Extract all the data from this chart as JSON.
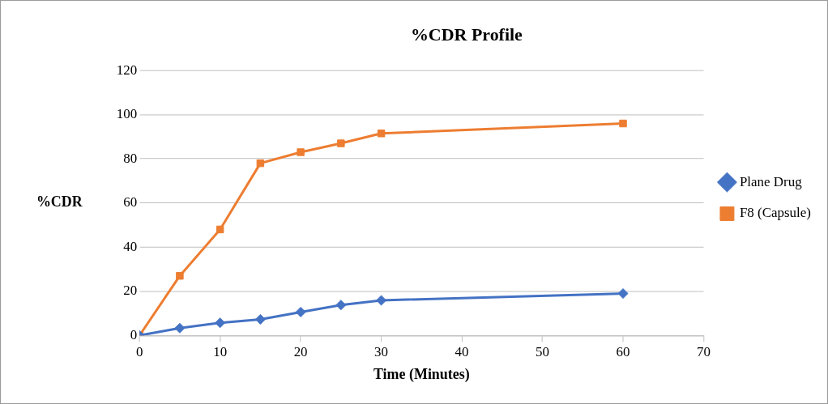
{
  "chart_data": {
    "type": "line",
    "title": "%CDR Profile",
    "xlabel": "Time (Minutes)",
    "ylabel": "%CDR",
    "x": [
      0,
      5,
      10,
      15,
      20,
      25,
      30,
      60
    ],
    "series": [
      {
        "name": "Plane Drug",
        "color": "#4472c4",
        "marker": "diamond",
        "values": [
          0,
          3.3,
          5.7,
          7.3,
          10.6,
          13.8,
          15.9,
          19
        ]
      },
      {
        "name": "F8 (Capsule)",
        "color": "#ed7d31",
        "marker": "square",
        "values": [
          0,
          27,
          48,
          78,
          83,
          87,
          91.5,
          96
        ]
      }
    ],
    "xlim": [
      0,
      70
    ],
    "xticks": [
      0,
      10,
      20,
      30,
      40,
      50,
      60,
      70
    ],
    "ylim": [
      0,
      120
    ],
    "yticks": [
      0,
      20,
      40,
      60,
      80,
      100,
      120
    ],
    "grid": "y",
    "legend": "right",
    "line_style": "solid"
  }
}
